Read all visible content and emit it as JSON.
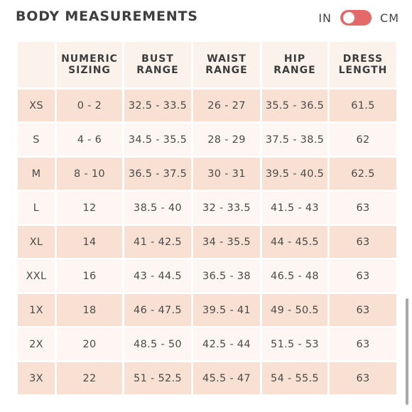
{
  "title": "BODY MEASUREMENTS",
  "unit_toggle": {
    "left_label": "IN",
    "right_label": "CM"
  },
  "table": {
    "headers": [
      {
        "line1": "",
        "line2": ""
      },
      {
        "line1": "NUMERIC",
        "line2": "SIZING"
      },
      {
        "line1": "BUST",
        "line2": "RANGE"
      },
      {
        "line1": "WAIST",
        "line2": "RANGE"
      },
      {
        "line1": "HIP",
        "line2": "RANGE"
      },
      {
        "line1": "DRESS",
        "line2": "LENGTH"
      }
    ],
    "rows": [
      [
        "XS",
        "0 - 2",
        "32.5 - 33.5",
        "26 - 27",
        "35.5 - 36.5",
        "61.5"
      ],
      [
        "S",
        "4 - 6",
        "34.5 - 35.5",
        "28 - 29",
        "37.5 - 38.5",
        "62"
      ],
      [
        "M",
        "8 - 10",
        "36.5 - 37.5",
        "30 - 31",
        "39.5 - 40.5",
        "62.5"
      ],
      [
        "L",
        "12",
        "38.5 - 40",
        "32 - 33.5",
        "41.5 - 43",
        "63"
      ],
      [
        "XL",
        "14",
        "41 - 42.5",
        "34 - 35.5",
        "44 - 45.5",
        "63"
      ],
      [
        "XXL",
        "16",
        "43 - 44.5",
        "36.5 - 38",
        "46.5 - 48",
        "63"
      ],
      [
        "1X",
        "18",
        "46 - 47.5",
        "39.5 - 41",
        "49 - 50.5",
        "63"
      ],
      [
        "2X",
        "20",
        "48.5 - 50",
        "42.5 - 44",
        "51.5 - 53",
        "63"
      ],
      [
        "3X",
        "22",
        "51 - 52.5",
        "45.5 - 47",
        "54 - 55.5",
        "63"
      ]
    ]
  },
  "colors": {
    "toggle_track": "#e46a6a",
    "row_shaded": "#f8e1d2",
    "row_light": "#fdf6f2",
    "header_bg": "#fbf2ec"
  }
}
